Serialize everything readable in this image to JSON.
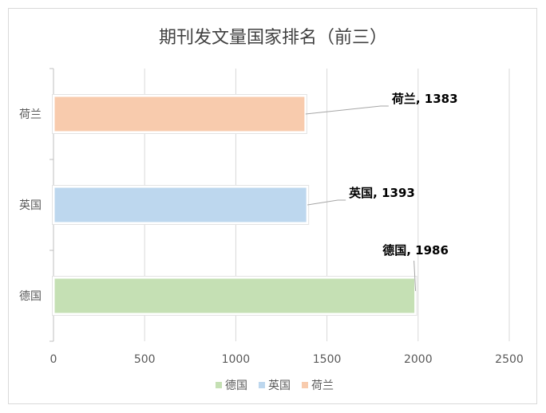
{
  "chart_data": {
    "type": "bar",
    "orientation": "horizontal",
    "title": "期刊发文量国家排名（前三）",
    "categories": [
      "德国",
      "英国",
      "荷兰"
    ],
    "series": [
      {
        "name": "德国",
        "category": "德国",
        "value": 1986,
        "color": "#c5e0b4",
        "label": "德国, 1986"
      },
      {
        "name": "英国",
        "category": "英国",
        "value": 1393,
        "color": "#bdd7ee",
        "label": "英国, 1393"
      },
      {
        "name": "荷兰",
        "category": "荷兰",
        "value": 1383,
        "color": "#f8cbad",
        "label": "荷兰, 1383"
      }
    ],
    "xlim": [
      0,
      2500
    ],
    "xticks": [
      "0",
      "500",
      "1000",
      "1500",
      "2000",
      "2500"
    ],
    "xlabel": "",
    "ylabel": "",
    "grid": "vertical",
    "legend_position": "bottom"
  }
}
